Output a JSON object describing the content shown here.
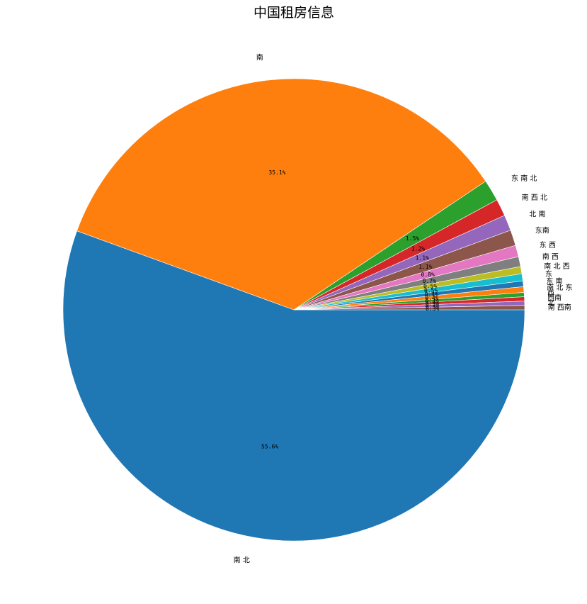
{
  "chart_data": {
    "type": "pie",
    "title": "中国租房信息",
    "start_angle_deg": 0,
    "direction": "clockwise",
    "slices": [
      {
        "label": "南 北",
        "value": 55.6,
        "pct_label": "55.6%",
        "color": "#1f77b4"
      },
      {
        "label": "南",
        "value": 35.1,
        "pct_label": "35.1%",
        "color": "#ff7f0e"
      },
      {
        "label": "东 南 北",
        "value": 1.5,
        "pct_label": "1.5%",
        "color": "#2ca02c"
      },
      {
        "label": "南 西 北",
        "value": 1.2,
        "pct_label": "1.2%",
        "color": "#d62728"
      },
      {
        "label": "北 南",
        "value": 1.1,
        "pct_label": "1.1%",
        "color": "#9467bd"
      },
      {
        "label": "东南",
        "value": 1.1,
        "pct_label": "1.1%",
        "color": "#8c564b"
      },
      {
        "label": "东 西",
        "value": 0.8,
        "pct_label": "0.8%",
        "color": "#e377c2"
      },
      {
        "label": "南 西",
        "value": 0.7,
        "pct_label": "0.7%",
        "color": "#7f7f7f"
      },
      {
        "label": "南 北 西",
        "value": 0.5,
        "pct_label": "0.5%",
        "color": "#bcbd22"
      },
      {
        "label": "东",
        "value": 0.5,
        "pct_label": "0.5%",
        "color": "#17becf"
      },
      {
        "label": "东 南",
        "value": 0.4,
        "pct_label": "0.4%",
        "color": "#1f77b4"
      },
      {
        "label": "南 北 东",
        "value": 0.4,
        "pct_label": "0.4%",
        "color": "#ff7f0e"
      },
      {
        "label": "西",
        "value": 0.3,
        "pct_label": "0.3%",
        "color": "#2ca02c"
      },
      {
        "label": "西南",
        "value": 0.3,
        "pct_label": "0.3%",
        "color": "#d62728"
      },
      {
        "label": "北",
        "value": 0.3,
        "pct_label": "0.3%",
        "color": "#9467bd"
      },
      {
        "label": "南 西南",
        "value": 0.3,
        "pct_label": "0.3%",
        "color": "#8c564b"
      }
    ]
  }
}
